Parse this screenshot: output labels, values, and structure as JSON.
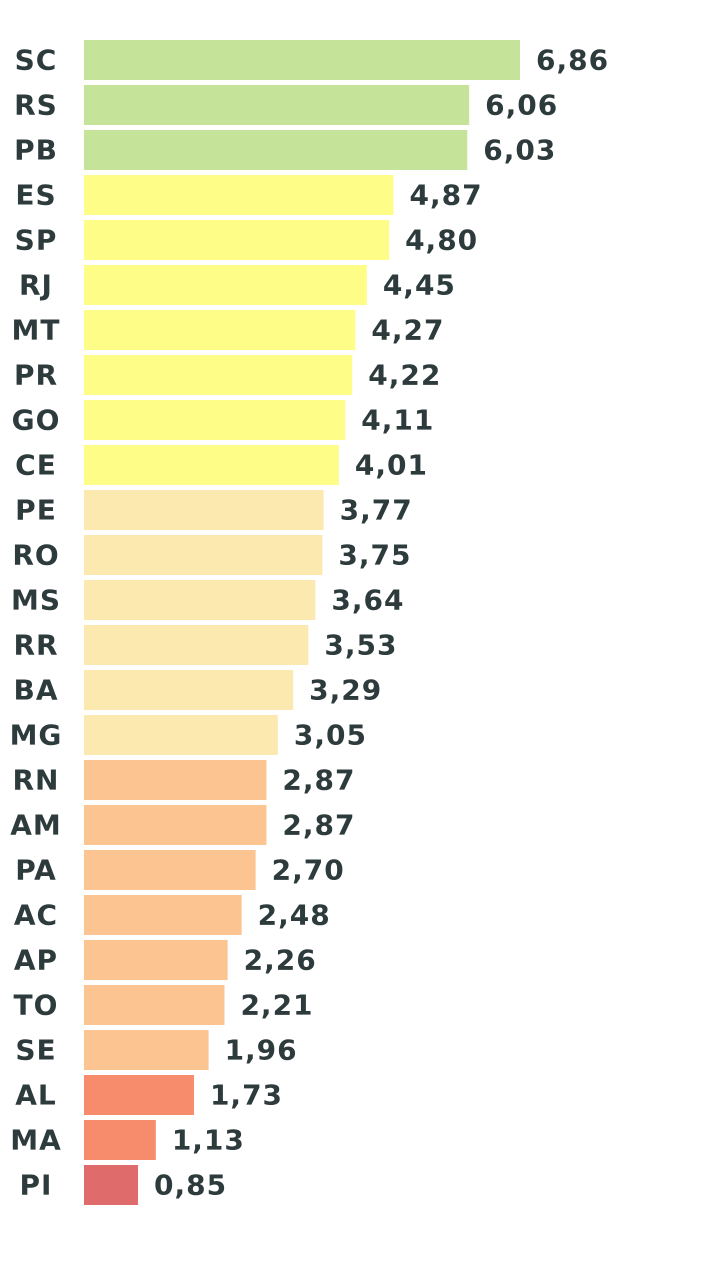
{
  "chart_data": {
    "type": "bar",
    "orientation": "horizontal",
    "categories": [
      "SC",
      "RS",
      "PB",
      "ES",
      "SP",
      "RJ",
      "MT",
      "PR",
      "GO",
      "CE",
      "PE",
      "RO",
      "MS",
      "RR",
      "BA",
      "MG",
      "RN",
      "AM",
      "PA",
      "AC",
      "AP",
      "TO",
      "SE",
      "AL",
      "MA",
      "PI"
    ],
    "values": [
      6.86,
      6.06,
      6.03,
      4.87,
      4.8,
      4.45,
      4.27,
      4.22,
      4.11,
      4.01,
      3.77,
      3.75,
      3.64,
      3.53,
      3.29,
      3.05,
      2.87,
      2.87,
      2.7,
      2.48,
      2.26,
      2.21,
      1.96,
      1.73,
      1.13,
      0.85
    ],
    "value_labels": [
      "6,86",
      "6,06",
      "6,03",
      "4,87",
      "4,80",
      "4,45",
      "4,27",
      "4,22",
      "4,11",
      "4,01",
      "3,77",
      "3,75",
      "3,64",
      "3,53",
      "3,29",
      "3,05",
      "2,87",
      "2,87",
      "2,70",
      "2,48",
      "2,26",
      "2,21",
      "1,96",
      "1,73",
      "1,13",
      "0,85"
    ],
    "colors": [
      "#c5e49a",
      "#c5e49a",
      "#c5e49a",
      "#fdfd88",
      "#fdfd88",
      "#fdfd88",
      "#fdfd88",
      "#fdfd88",
      "#fdfd88",
      "#fdfd88",
      "#fbe9b0",
      "#fbe9b0",
      "#fbe9b0",
      "#fbe9b0",
      "#fbe9b0",
      "#fbe9b0",
      "#fbc490",
      "#fbc490",
      "#fbc490",
      "#fbc490",
      "#fbc490",
      "#fbc490",
      "#fbc490",
      "#f78c6c",
      "#f78c6c",
      "#e06b6b"
    ]
  }
}
